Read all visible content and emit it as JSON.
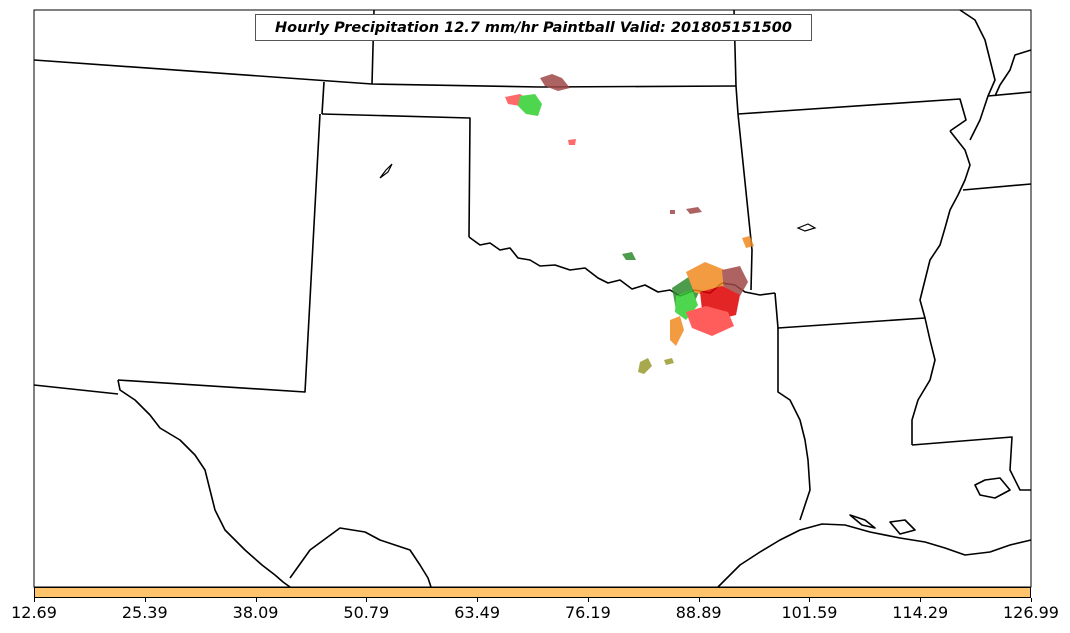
{
  "map": {
    "title": "Hourly Precipitation 12.7 mm/hr Paintball Valid: 201805151500"
  },
  "colorbar": {
    "color": "#ffc46b",
    "tick_labels": [
      "12.69",
      "25.39",
      "38.09",
      "50.79",
      "63.49",
      "76.19",
      "88.89",
      "101.59",
      "114.29",
      "126.99"
    ]
  },
  "paintball_colors": {
    "dark_red": "#a04848",
    "red": "#ff4040",
    "bright_red": "#e00000",
    "green": "#30d030",
    "dark_green": "#2e8b2e",
    "orange": "#f08a20",
    "olive": "#9a9a30"
  }
}
